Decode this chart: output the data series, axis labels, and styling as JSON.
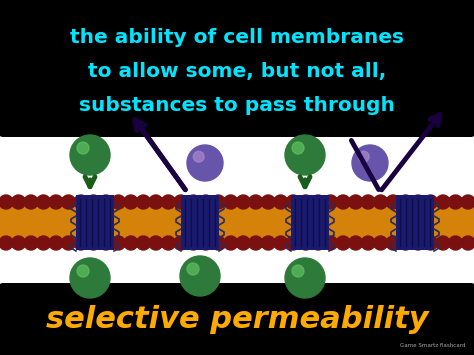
{
  "bg_top": "#000000",
  "bg_bottom": "#000000",
  "top_text_line1": "the ability of cell membranes",
  "top_text_line2": "to allow some, but not all,",
  "top_text_line3": "substances to pass through",
  "top_text_color": "#00e5ff",
  "bottom_text": "selective permeability",
  "bottom_text_color": "#ffaa00",
  "credit_text": "Game Smartz flashcard",
  "credit_color": "#aaaaaa",
  "membrane_color": "#d4820a",
  "phospholipid_head_color": "#7a1010",
  "phospholipid_body_color": "#1a1a6e",
  "green_molecule_color": "#2d7a3a",
  "green_molecule_highlight": "#60c060",
  "purple_molecule_color": "#6655aa",
  "purple_molecule_highlight": "#aa88cc",
  "green_arrow_color": "#1a5c1a",
  "purple_arrow_color": "#1a0040",
  "fig_width": 4.74,
  "fig_height": 3.55,
  "fig_dpi": 100
}
